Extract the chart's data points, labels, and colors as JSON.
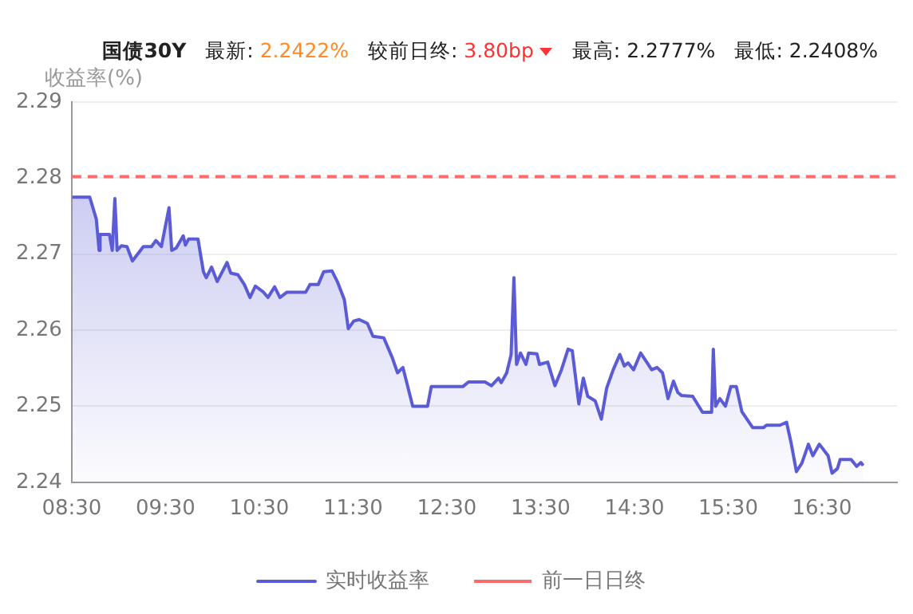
{
  "chart_data": {
    "type": "area",
    "title": "国债30Y",
    "annotations": [
      "最新: 2.2422%",
      "较前日终: 3.80bp",
      "最高: 2.2777%",
      "最低: 2.2408%"
    ],
    "ylabel": "收益率(%)",
    "x": [
      8.505,
      8.692,
      8.762,
      8.792,
      8.802,
      8.902,
      8.932,
      8.96,
      8.984,
      9.03,
      9.089,
      9.147,
      9.264,
      9.351,
      9.397,
      9.456,
      9.537,
      9.566,
      9.614,
      9.689,
      9.712,
      9.747,
      9.846,
      9.904,
      9.934,
      9.991,
      10.051,
      10.156,
      10.196,
      10.271,
      10.341,
      10.4,
      10.458,
      10.545,
      10.592,
      10.663,
      10.72,
      10.795,
      10.995,
      11.04,
      11.128,
      11.187,
      11.274,
      11.332,
      11.407,
      11.449,
      11.507,
      11.565,
      11.652,
      11.712,
      11.827,
      11.914,
      11.974,
      12.031,
      12.136,
      12.294,
      12.334,
      12.673,
      12.731,
      12.906,
      12.976,
      13.051,
      13.08,
      13.138,
      13.185,
      13.215,
      13.243,
      13.285,
      13.343,
      13.372,
      13.46,
      13.488,
      13.575,
      13.652,
      13.722,
      13.792,
      13.837,
      13.907,
      13.955,
      14.002,
      14.082,
      14.147,
      14.204,
      14.274,
      14.344,
      14.392,
      14.432,
      14.491,
      14.566,
      14.684,
      14.741,
      14.799,
      14.858,
      14.916,
      14.963,
      15.003,
      15.121,
      15.226,
      15.323,
      15.341,
      15.365,
      15.411,
      15.47,
      15.528,
      15.586,
      15.645,
      15.76,
      15.878,
      15.908,
      16.052,
      16.122,
      16.17,
      16.227,
      16.285,
      16.355,
      16.402,
      16.472,
      16.565,
      16.607,
      16.664,
      16.694,
      16.81,
      16.869,
      16.915,
      16.939
    ],
    "series": [
      {
        "name": "实时收益率",
        "color": "#5b5bd6",
        "values": [
          2.2775,
          2.2775,
          2.2746,
          2.2705,
          2.2726,
          2.2726,
          2.2705,
          2.2773,
          2.2705,
          2.2711,
          2.271,
          2.2691,
          2.271,
          2.271,
          2.2718,
          2.271,
          2.2761,
          2.2705,
          2.2708,
          2.2724,
          2.2712,
          2.272,
          2.272,
          2.2677,
          2.2669,
          2.2683,
          2.2664,
          2.2689,
          2.2675,
          2.2673,
          2.266,
          2.2643,
          2.2658,
          2.265,
          2.2643,
          2.2657,
          2.2643,
          2.265,
          2.265,
          2.266,
          2.266,
          2.2677,
          2.2678,
          2.2664,
          2.264,
          2.2602,
          2.2612,
          2.2614,
          2.2609,
          2.2592,
          2.259,
          2.2565,
          2.2544,
          2.2551,
          2.25,
          2.25,
          2.2526,
          2.2526,
          2.2532,
          2.2532,
          2.2527,
          2.2537,
          2.2531,
          2.2544,
          2.2568,
          2.2669,
          2.2555,
          2.257,
          2.2555,
          2.257,
          2.2569,
          2.2555,
          2.2558,
          2.2527,
          2.2548,
          2.2575,
          2.2573,
          2.2503,
          2.2537,
          2.2513,
          2.2507,
          2.2483,
          2.2524,
          2.2548,
          2.2568,
          2.2553,
          2.2557,
          2.2548,
          2.257,
          2.2548,
          2.2551,
          2.2544,
          2.251,
          2.2533,
          2.2518,
          2.2514,
          2.2513,
          2.2492,
          2.2492,
          2.2575,
          2.25,
          2.251,
          2.25,
          2.2526,
          2.2526,
          2.2493,
          2.2472,
          2.2472,
          2.2475,
          2.2475,
          2.2479,
          2.2452,
          2.2414,
          2.2425,
          2.245,
          2.2435,
          2.245,
          2.2435,
          2.2412,
          2.2418,
          2.243,
          2.243,
          2.2421,
          2.2426,
          2.2422
        ]
      }
    ],
    "ref_lines": [
      {
        "axis": "y",
        "value": 2.2802,
        "label": "前一日日终",
        "color": "#ff6b6b",
        "line_style": "dashed"
      }
    ],
    "xlim": [
      8.5,
      17.3
    ],
    "xticks": [
      {
        "value": 8.5,
        "label": "08:30"
      },
      {
        "value": 9.5,
        "label": "09:30"
      },
      {
        "value": 10.5,
        "label": "10:30"
      },
      {
        "value": 11.5,
        "label": "11:30"
      },
      {
        "value": 12.5,
        "label": "12:30"
      },
      {
        "value": 13.5,
        "label": "13:30"
      },
      {
        "value": 14.5,
        "label": "14:30"
      },
      {
        "value": 15.5,
        "label": "15:30"
      },
      {
        "value": 16.5,
        "label": "16:30"
      }
    ],
    "ylim": [
      2.24,
      2.29
    ],
    "yticks": [
      2.24,
      2.25,
      2.26,
      2.27,
      2.28,
      2.29
    ],
    "grid": "y",
    "legend": "bottom",
    "marker": "none",
    "line_style": "solid"
  }
}
